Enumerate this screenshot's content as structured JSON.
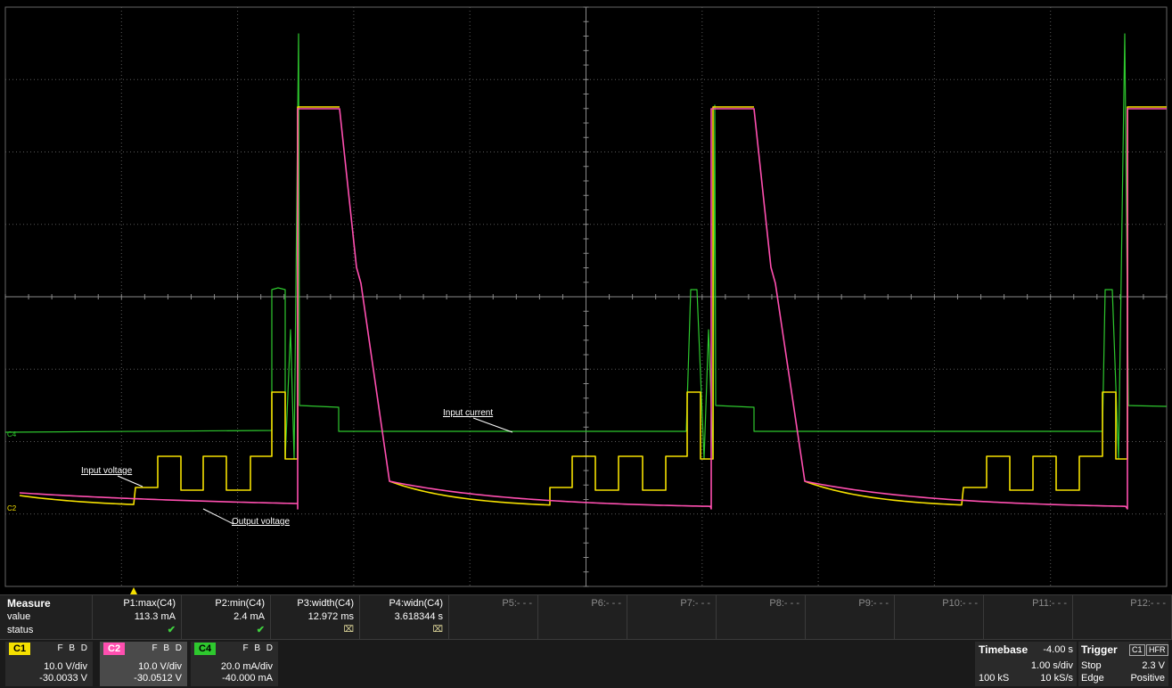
{
  "labels": {
    "input_current": "Input current",
    "input_voltage": "Input voltage",
    "output_voltage": "Output voltage",
    "c4_marker": "C4",
    "c2_marker": "C2"
  },
  "measure": {
    "title": "Measure",
    "row_value": "value",
    "row_status": "status",
    "params": [
      {
        "name": "P1:max(C4)",
        "value": "113.3 mA",
        "status": "✔"
      },
      {
        "name": "P2:min(C4)",
        "value": "2.4 mA",
        "status": "✔"
      },
      {
        "name": "P3:width(C4)",
        "value": "12.972 ms",
        "status": "⌧"
      },
      {
        "name": "P4:widn(C4)",
        "value": "3.618344 s",
        "status": "⌧"
      },
      {
        "name": "P5:- - -",
        "value": "",
        "status": ""
      },
      {
        "name": "P6:- - -",
        "value": "",
        "status": ""
      },
      {
        "name": "P7:- - -",
        "value": "",
        "status": ""
      },
      {
        "name": "P8:- - -",
        "value": "",
        "status": ""
      },
      {
        "name": "P9:- - -",
        "value": "",
        "status": ""
      },
      {
        "name": "P10:- - -",
        "value": "",
        "status": ""
      },
      {
        "name": "P11:- - -",
        "value": "",
        "status": ""
      },
      {
        "name": "P12:- - -",
        "value": "",
        "status": ""
      }
    ]
  },
  "channels": [
    {
      "tag": "C1",
      "flags": "F B D",
      "vdiv": "10.0 V/div",
      "offset": "-30.0033 V",
      "color": "#f5e000"
    },
    {
      "tag": "C2",
      "flags": "F B D",
      "vdiv": "10.0 V/div",
      "offset": "-30.0512 V",
      "color": "#ff4fb0"
    },
    {
      "tag": "C4",
      "flags": "F B D",
      "vdiv": "20.0 mA/div",
      "offset": "-40.000 mA",
      "color": "#2ec82e"
    }
  ],
  "timebase": {
    "label": "Timebase",
    "delay": "-4.00 s",
    "per_div": "1.00 s/div",
    "samples": "100 kS",
    "rate": "10 kS/s"
  },
  "trigger": {
    "label": "Trigger",
    "source": "C1",
    "mode_tag": "HFR",
    "mode": "Stop",
    "level": "2.3 V",
    "type": "Edge",
    "slope": "Positive"
  },
  "colors": {
    "c1": "#f5e000",
    "c2": "#ff4fb0",
    "c4": "#2ec82e",
    "grid": "#5a5a5a",
    "background": "#000000"
  }
}
